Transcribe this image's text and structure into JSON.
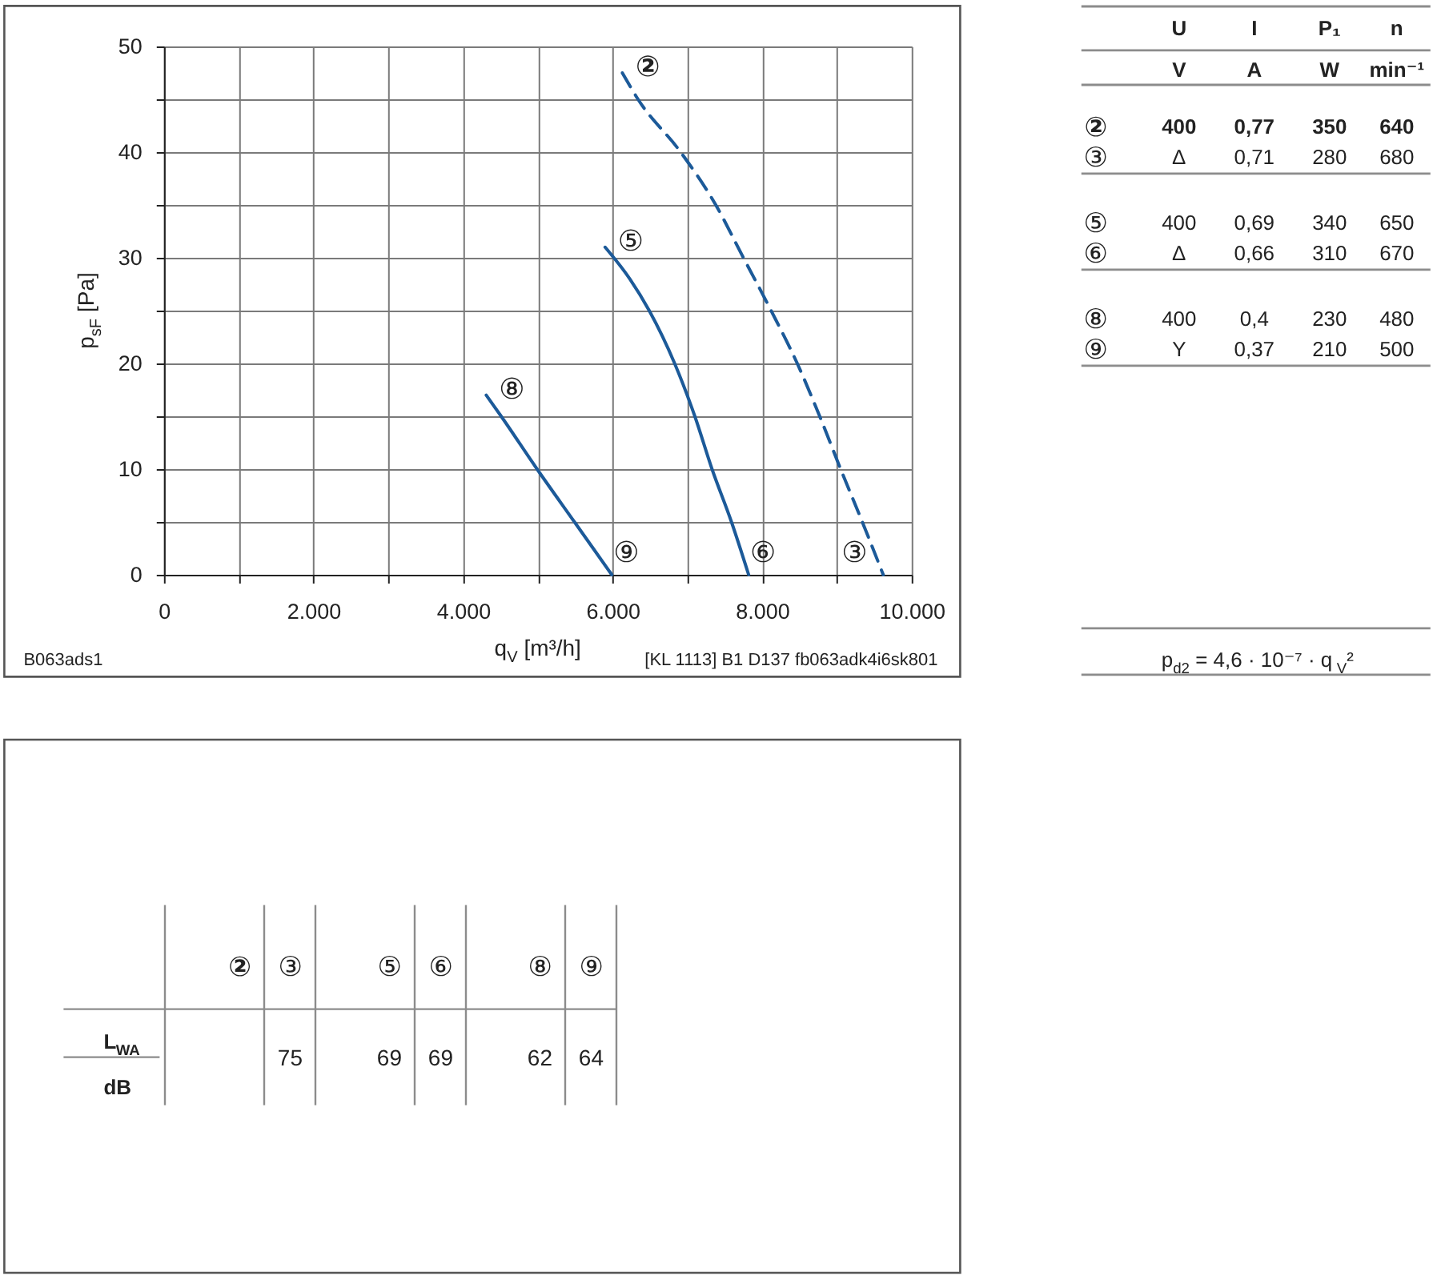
{
  "chart_data": [
    {
      "type": "line",
      "xlabel": "q$_{V}$ [m³/h]",
      "ylabel": "p$_{sF}$ [Pa]",
      "xlim": [
        0,
        10000
      ],
      "ylim": [
        0,
        50
      ],
      "xticks": [
        0,
        {
          "value": 1000,
          "label": null
        },
        {
          "value": 2000,
          "label": "2.000"
        },
        {
          "value": 3000,
          "label": null
        },
        {
          "value": 4000,
          "label": "4.000"
        },
        {
          "value": 5000,
          "label": null
        },
        {
          "value": 6000,
          "label": "6.000"
        },
        {
          "value": 7000,
          "label": null
        },
        {
          "value": 8000,
          "label": "8.000"
        },
        {
          "value": 9000,
          "label": null
        },
        {
          "value": 10000,
          "label": "10.000"
        }
      ],
      "yticks": [
        0,
        {
          "value": 5,
          "label": null
        },
        10,
        {
          "value": 15,
          "label": null
        },
        20,
        {
          "value": 25,
          "label": null
        },
        30,
        {
          "value": 35,
          "label": null
        },
        40,
        {
          "value": 45,
          "label": null
        },
        50
      ],
      "grid": true,
      "series": [
        {
          "color": "#1c5a99",
          "line_style": "dashed",
          "x": [
            6130,
            6340,
            6910,
            7380,
            7750,
            8120,
            8470,
            8770,
            9050,
            9340,
            9620
          ],
          "values": [
            47.5,
            45,
            40,
            35,
            30,
            25,
            20,
            15,
            10,
            5,
            0
          ]
        },
        {
          "color": "#1c5a99",
          "line_style": "solid",
          "x": [
            5900,
            6230,
            6490,
            6830,
            7100,
            7330,
            7590,
            7820
          ],
          "values": [
            31,
            28,
            25,
            20,
            15,
            10,
            5,
            0
          ]
        },
        {
          "color": "#1c5a99",
          "line_style": "solid",
          "x": [
            4310,
            4510,
            4990,
            5490,
            5990
          ],
          "values": [
            17,
            15,
            10,
            5,
            0
          ]
        }
      ],
      "annotations": [
        {
          "text": "②",
          "x": 6130,
          "y": 47.5
        },
        {
          "text": "⑤",
          "x": 5900,
          "y": 31
        },
        {
          "text": "⑧",
          "x": 4310,
          "y": 17
        },
        {
          "text": "⑨",
          "x": 5990,
          "y": 0
        },
        {
          "text": "⑥",
          "x": 7820,
          "y": 0
        },
        {
          "text": "③",
          "x": 9620,
          "y": 0
        },
        "B063ads1",
        "[KL 1113] B1 D137 fb063adk4i6sk801"
      ]
    },
    {
      "type": "other",
      "categories": [
        "U",
        "I",
        "P₁",
        "n"
      ],
      "y_categories": [
        null,
        "②",
        "③",
        "⑤",
        "⑥",
        "⑧",
        "⑨"
      ],
      "cell_labels": [
        [
          "V",
          "A",
          "W",
          "min⁻¹"
        ],
        [
          "400",
          "0,77",
          "350",
          "640"
        ],
        [
          "Δ",
          "0,71",
          "280",
          "680"
        ],
        [
          "400",
          "0,69",
          "340",
          "650"
        ],
        [
          "Δ",
          "0,66",
          "310",
          "670"
        ],
        [
          "400",
          "0,4",
          "230",
          "480"
        ],
        [
          "Y",
          "0,37",
          "210",
          "500"
        ]
      ],
      "annotations": [
        "p$_{d2}$ = 4,6 · 10⁻⁷ · q$_{V}$²"
      ]
    },
    {
      "type": "other",
      "categories": [
        "②",
        "③",
        "⑤",
        "⑥",
        "⑧",
        "⑨"
      ],
      "y_categories": [
        "L$_{WA}$"
      ],
      "ylabel": "dB",
      "cell_labels": [
        [
          null,
          "75",
          "69",
          "69",
          "62",
          "64"
        ]
      ]
    }
  ]
}
